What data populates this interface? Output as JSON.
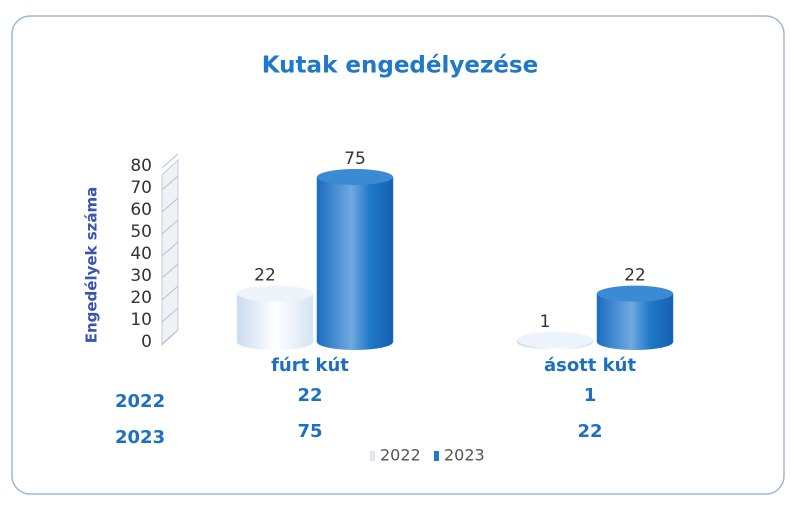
{
  "chart_data": {
    "type": "bar",
    "title": "Kutak engedélyezése",
    "ylabel": "Engedélyek száma",
    "categories": [
      "fúrt kút",
      "ásott kút"
    ],
    "series": [
      {
        "name": "2022",
        "color": "#dce8f5",
        "values": [
          22,
          1
        ]
      },
      {
        "name": "2023",
        "color": "#1f78c8",
        "values": [
          75,
          22
        ]
      }
    ],
    "ylim": [
      0,
      80
    ],
    "yticks": [
      0,
      10,
      20,
      30,
      40,
      50,
      60,
      70,
      80
    ],
    "data_table": true
  }
}
